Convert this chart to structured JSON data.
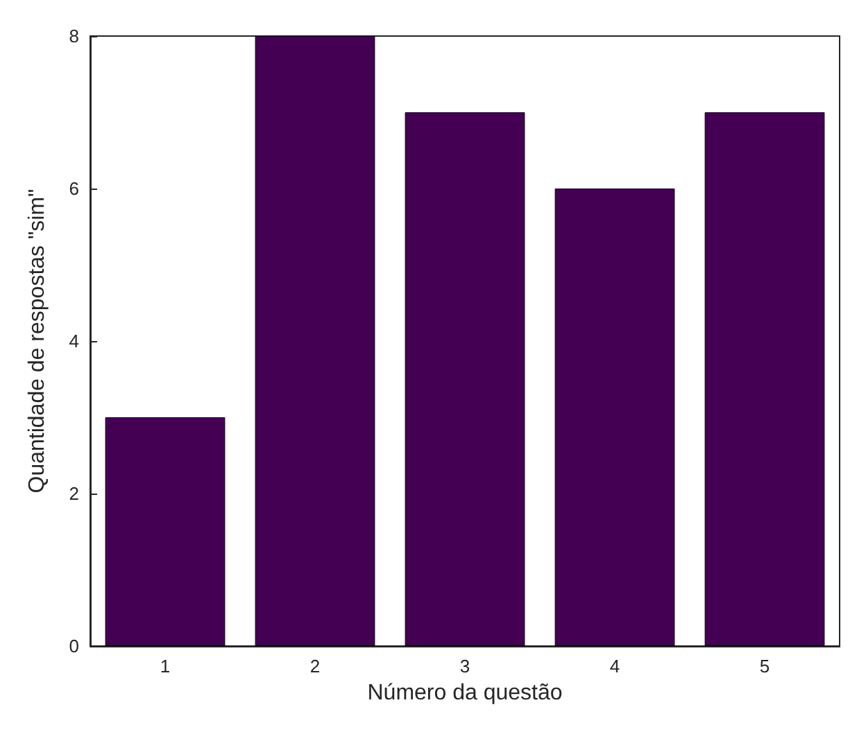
{
  "chart_data": {
    "type": "bar",
    "xlabel": "Número da questão",
    "ylabel": "Quantidade de respostas \"sim\"",
    "categories": [
      "1",
      "2",
      "3",
      "4",
      "5"
    ],
    "values": [
      3,
      8,
      7,
      6,
      7
    ],
    "color": "#440154",
    "ylim": [
      0,
      8
    ],
    "yticks": [
      0,
      2,
      4,
      6,
      8
    ],
    "grid": false
  }
}
